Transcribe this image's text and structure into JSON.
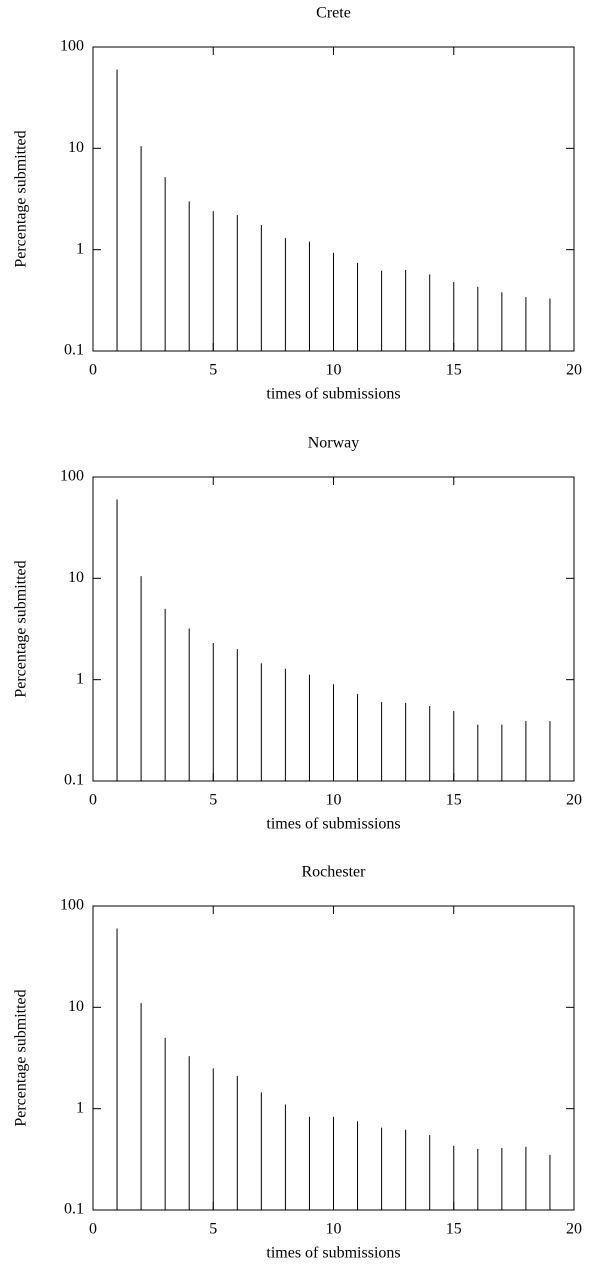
{
  "chart_data": [
    {
      "type": "impulse",
      "title": "Crete",
      "xlabel": "times of submissions",
      "ylabel": "Percentage submitted",
      "x": [
        1,
        2,
        3,
        4,
        5,
        6,
        7,
        8,
        9,
        10,
        11,
        12,
        13,
        14,
        15,
        16,
        17,
        18,
        19
      ],
      "values": [
        60,
        10.5,
        5.2,
        3.0,
        2.4,
        2.2,
        1.75,
        1.3,
        1.2,
        0.93,
        0.74,
        0.62,
        0.63,
        0.57,
        0.48,
        0.43,
        0.38,
        0.34,
        0.33
      ],
      "color": "#000000",
      "xlim": [
        0,
        20
      ],
      "ylim": [
        0.1,
        100
      ],
      "xticks": [
        0,
        5,
        10,
        15,
        20
      ],
      "yticks": [
        0.1,
        1,
        10,
        100
      ],
      "ylog": true
    },
    {
      "type": "impulse",
      "title": "Norway",
      "xlabel": "times of submissions",
      "ylabel": "Percentage submitted",
      "x": [
        1,
        2,
        3,
        4,
        5,
        6,
        7,
        8,
        9,
        10,
        11,
        12,
        13,
        14,
        15,
        16,
        17,
        18,
        19
      ],
      "values": [
        60,
        10.5,
        5.0,
        3.2,
        2.3,
        2.0,
        1.45,
        1.28,
        1.12,
        0.9,
        0.72,
        0.6,
        0.59,
        0.55,
        0.49,
        0.36,
        0.36,
        0.39,
        0.39
      ],
      "color": "#000000",
      "xlim": [
        0,
        20
      ],
      "ylim": [
        0.1,
        100
      ],
      "xticks": [
        0,
        5,
        10,
        15,
        20
      ],
      "yticks": [
        0.1,
        1,
        10,
        100
      ],
      "ylog": true
    },
    {
      "type": "impulse",
      "title": "Rochester",
      "xlabel": "times of submissions",
      "ylabel": "Percentage submitted",
      "x": [
        1,
        2,
        3,
        4,
        5,
        6,
        7,
        8,
        9,
        10,
        11,
        12,
        13,
        14,
        15,
        16,
        17,
        18,
        19
      ],
      "values": [
        60,
        11,
        5.0,
        3.3,
        2.5,
        2.1,
        1.45,
        1.1,
        0.83,
        0.83,
        0.75,
        0.65,
        0.62,
        0.55,
        0.43,
        0.4,
        0.41,
        0.42,
        0.35
      ],
      "color": "#000000",
      "xlim": [
        0,
        20
      ],
      "ylim": [
        0.1,
        100
      ],
      "xticks": [
        0,
        5,
        10,
        15,
        20
      ],
      "yticks": [
        0.1,
        1,
        10,
        100
      ],
      "ylog": true
    }
  ]
}
